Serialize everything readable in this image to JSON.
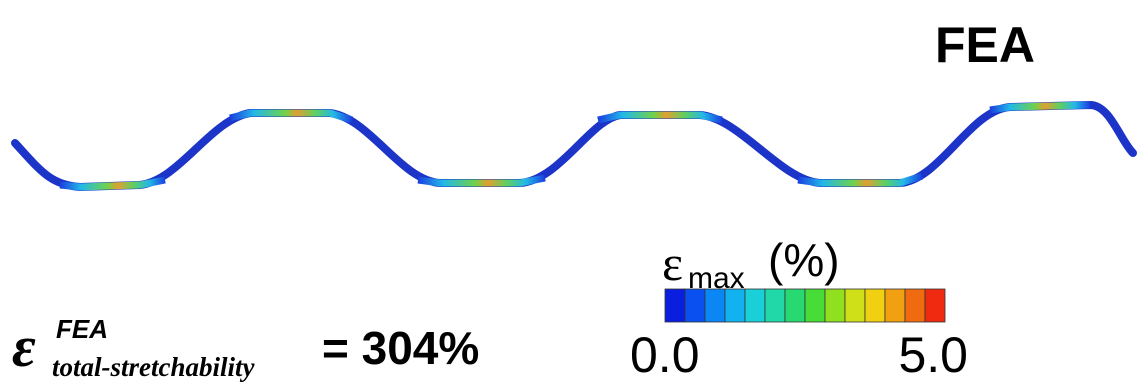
{
  "title": "FEA",
  "colorbar": {
    "symbol": "ε",
    "subscript": "max",
    "unit": "(%)",
    "min_label": "0.0",
    "max_label": "5.0"
  },
  "result": {
    "symbol": "ε",
    "superscript": "FEA",
    "subscript": "total-stretchability",
    "value_text": "= 304%"
  }
}
